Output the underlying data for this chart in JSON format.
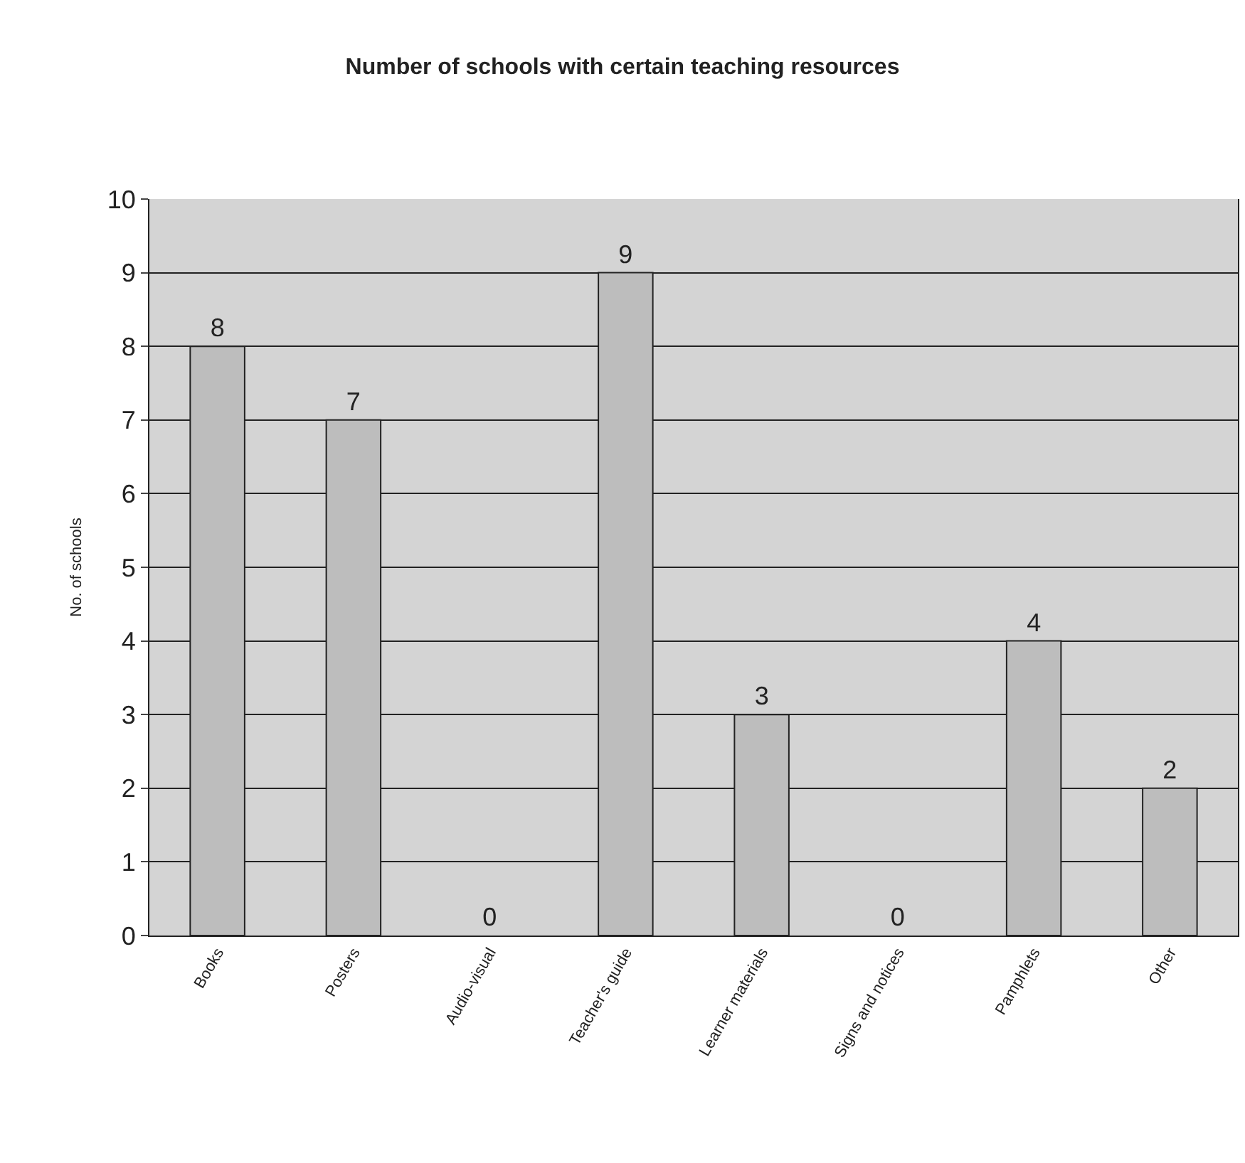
{
  "chart_data": {
    "type": "bar",
    "title": "Number of schools with certain teaching resources",
    "ylabel": "No. of schools",
    "categories": [
      "Books",
      "Posters",
      "Audio-visual",
      "Teacher's guide",
      "Learner materials",
      "Signs and notices",
      "Pamphlets",
      "Other"
    ],
    "values": [
      8,
      7,
      0,
      9,
      3,
      0,
      4,
      2
    ],
    "color": "#bdbdbd",
    "ylim": [
      0,
      10
    ],
    "yticks": [
      0,
      1,
      2,
      3,
      4,
      5,
      6,
      7,
      8,
      9,
      10
    ],
    "grid": "y",
    "data_labels": true
  }
}
